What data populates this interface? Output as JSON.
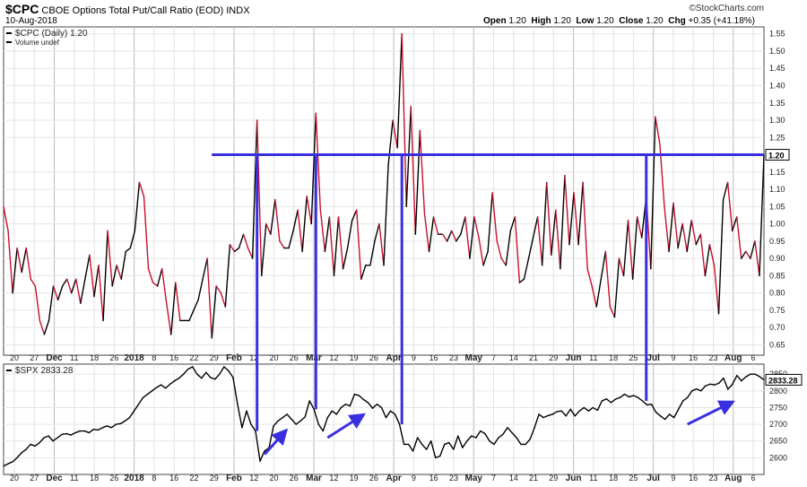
{
  "header": {
    "symbol": "$CPC",
    "name": "CBOE Options Total Put/Call Ratio (EOD)",
    "exchange": "INDX",
    "date": "10-Aug-2018",
    "brand": "©StockCharts.com",
    "open_label": "Open",
    "open": "1.20",
    "high_label": "High",
    "high": "1.20",
    "low_label": "Low",
    "low": "1.20",
    "close_label": "Close",
    "close": "1.20",
    "chg_label": "Chg",
    "chg": "+0.35 (+41.18%)"
  },
  "chart_data": [
    {
      "type": "line",
      "legend": [
        "$CPC (Daily) 1.20",
        "Volume undef"
      ],
      "ylim": [
        0.62,
        1.57
      ],
      "yticks": [
        "1.55",
        "1.50",
        "1.45",
        "1.40",
        "1.35",
        "1.30",
        "1.25",
        "1.15",
        "1.10",
        "1.05",
        "1.00",
        "0.95",
        "0.90",
        "0.85",
        "0.80",
        "0.75",
        "0.70",
        "0.65"
      ],
      "last_value_label": "1.20",
      "series": [
        {
          "values": [
            1.05,
            0.98,
            0.8,
            0.93,
            0.86,
            0.93,
            0.84,
            0.82,
            0.72,
            0.68,
            0.72,
            0.82,
            0.78,
            0.82,
            0.84,
            0.8,
            0.84,
            0.77,
            0.84,
            0.91,
            0.79,
            0.88,
            0.72,
            0.98,
            0.82,
            0.88,
            0.84,
            0.92,
            0.93,
            0.98,
            1.12,
            1.08,
            0.87,
            0.83,
            0.82,
            0.87,
            0.77,
            0.68,
            0.83,
            0.72,
            0.72,
            0.72,
            0.75,
            0.78,
            0.84,
            0.9,
            0.67,
            0.82,
            0.8,
            0.76,
            0.94,
            0.92,
            0.93,
            0.97,
            0.93,
            0.9,
            1.3,
            0.85,
            1.0,
            0.97,
            1.07,
            0.95,
            0.93,
            0.93,
            0.98,
            1.04,
            0.92,
            1.08,
            1.0,
            1.32,
            1.04,
            0.92,
            1.02,
            0.85,
            1.02,
            0.87,
            0.93,
            1.01,
            1.04,
            0.84,
            0.88,
            0.88,
            0.95,
            1.0,
            0.88,
            1.17,
            1.3,
            1.22,
            1.55,
            1.05,
            1.34,
            0.97,
            1.27,
            1.03,
            0.92,
            1.02,
            0.97,
            0.97,
            0.95,
            0.98,
            0.95,
            0.97,
            1.02,
            0.9,
            1.02,
            0.96,
            0.88,
            0.92,
            1.09,
            0.95,
            0.9,
            0.88,
            0.98,
            1.02,
            0.83,
            0.84,
            0.9,
            0.96,
            1.02,
            0.88,
            1.12,
            0.91,
            1.04,
            0.87,
            1.14,
            0.94,
            1.09,
            0.94,
            1.12,
            0.87,
            0.82,
            0.76,
            0.84,
            0.92,
            0.76,
            0.73,
            0.9,
            0.85,
            1.01,
            0.84,
            1.02,
            0.96,
            1.08,
            0.87,
            1.31,
            1.23,
            1.05,
            0.92,
            1.06,
            0.93,
            1.0,
            0.92,
            1.01,
            0.94,
            0.97,
            0.85,
            0.94,
            0.88,
            0.74,
            1.07,
            1.12,
            0.98,
            1.02,
            0.9,
            0.92,
            0.9,
            0.95,
            0.85,
            1.2
          ]
        }
      ],
      "reference_level": 1.2,
      "xticks": [
        "20",
        "27",
        "Dec",
        "11",
        "18",
        "26",
        "2018",
        "8",
        "16",
        "22",
        "29",
        "Feb",
        "12",
        "20",
        "26",
        "Mar",
        "12",
        "19",
        "26",
        "Apr",
        "9",
        "16",
        "23",
        "May",
        "7",
        "14",
        "21",
        "29",
        "Jun",
        "11",
        "18",
        "25",
        "Jul",
        "9",
        "16",
        "23",
        "Aug",
        "6"
      ]
    },
    {
      "type": "line",
      "legend": [
        "$SPX 2833.28"
      ],
      "ylim": [
        2550,
        2880
      ],
      "yticks": [
        "2850",
        "2800",
        "2750",
        "2700",
        "2650",
        "2600"
      ],
      "last_value_label": "2833.28",
      "series": [
        {
          "values": [
            2575,
            2582,
            2588,
            2600,
            2615,
            2625,
            2640,
            2635,
            2645,
            2660,
            2665,
            2650,
            2660,
            2670,
            2672,
            2668,
            2675,
            2680,
            2680,
            2675,
            2685,
            2683,
            2690,
            2695,
            2690,
            2700,
            2702,
            2710,
            2720,
            2740,
            2760,
            2780,
            2790,
            2800,
            2810,
            2818,
            2808,
            2820,
            2830,
            2838,
            2850,
            2865,
            2872,
            2850,
            2838,
            2855,
            2840,
            2835,
            2850,
            2872,
            2860,
            2840,
            2760,
            2690,
            2740,
            2700,
            2680,
            2590,
            2620,
            2630,
            2695,
            2710,
            2720,
            2730,
            2715,
            2700,
            2710,
            2722,
            2770,
            2745,
            2700,
            2680,
            2720,
            2740,
            2730,
            2750,
            2760,
            2755,
            2790,
            2786,
            2774,
            2765,
            2748,
            2760,
            2750,
            2720,
            2740,
            2730,
            2700,
            2640,
            2640,
            2620,
            2660,
            2640,
            2625,
            2650,
            2600,
            2605,
            2640,
            2645,
            2625,
            2665,
            2630,
            2650,
            2665,
            2660,
            2680,
            2672,
            2650,
            2640,
            2660,
            2670,
            2690,
            2675,
            2660,
            2640,
            2640,
            2655,
            2690,
            2730,
            2720,
            2726,
            2730,
            2738,
            2740,
            2725,
            2745,
            2725,
            2740,
            2750,
            2740,
            2750,
            2742,
            2770,
            2776,
            2765,
            2775,
            2780,
            2790,
            2782,
            2786,
            2780,
            2770,
            2758,
            2760,
            2736,
            2725,
            2715,
            2730,
            2720,
            2745,
            2770,
            2780,
            2800,
            2806,
            2800,
            2815,
            2820,
            2818,
            2823,
            2838,
            2805,
            2820,
            2846,
            2830,
            2842,
            2850,
            2850,
            2843,
            2833
          ]
        }
      ],
      "xticks": [
        "20",
        "27",
        "Dec",
        "11",
        "18",
        "26",
        "2018",
        "8",
        "16",
        "22",
        "29",
        "Feb",
        "12",
        "20",
        "26",
        "Mar",
        "12",
        "19",
        "26",
        "Apr",
        "9",
        "16",
        "23",
        "May",
        "7",
        "14",
        "21",
        "29",
        "Jun",
        "11",
        "18",
        "25",
        "Jul",
        "9",
        "16",
        "23",
        "Aug",
        "6"
      ]
    }
  ],
  "annotations": {
    "hline_color": "#3a2fe0",
    "arrow_color": "#3a2fe0",
    "line_up_color": "#000000",
    "line_down_color": "#c8102e"
  }
}
